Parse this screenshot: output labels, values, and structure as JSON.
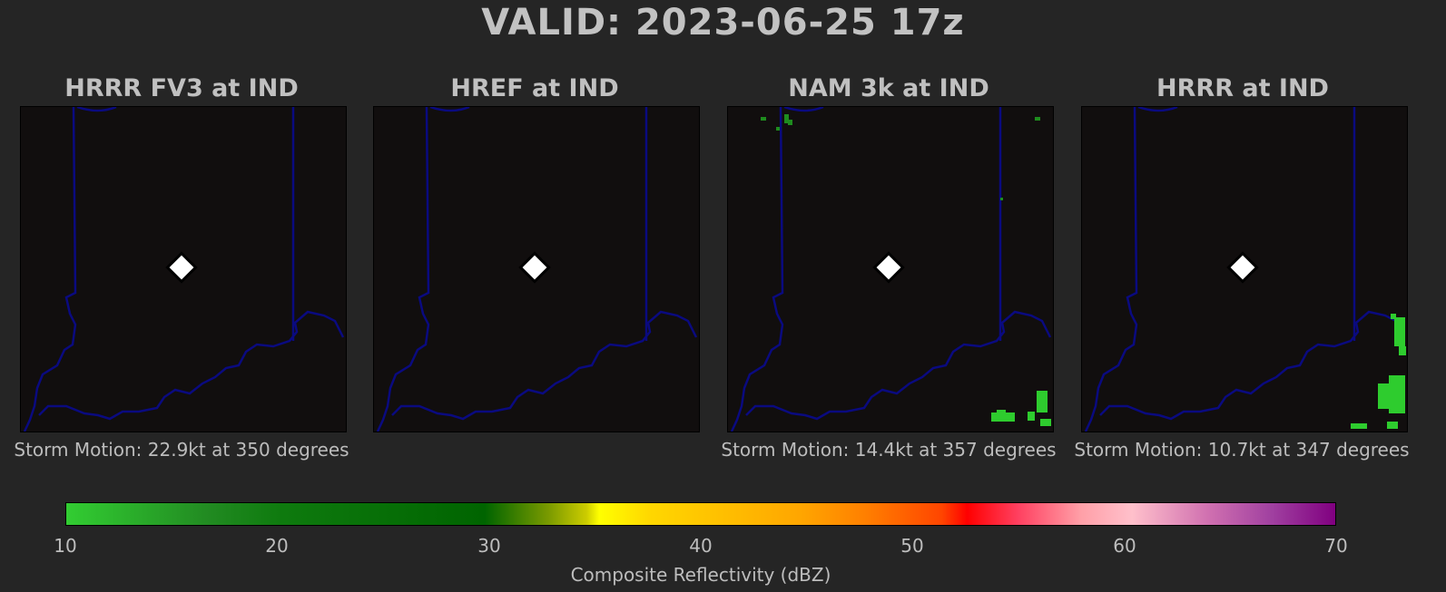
{
  "title": "VALID: 2023-06-25 17z",
  "panels": [
    {
      "title": "HRRR FV3 at IND",
      "motion": "Storm Motion: 22.9kt at 350 degrees"
    },
    {
      "title": "HREF at IND",
      "motion": ""
    },
    {
      "title": "NAM 3k at IND",
      "motion": "Storm Motion: 14.4kt at 357 degrees"
    },
    {
      "title": "HRRR at IND",
      "motion": "Storm Motion: 10.7kt at 347 degrees"
    }
  ],
  "colorbar": {
    "label": "Composite Reflectivity (dBZ)",
    "ticks": [
      "10",
      "20",
      "30",
      "40",
      "50",
      "60",
      "70"
    ],
    "range": [
      10,
      70
    ]
  },
  "colors": {
    "background": "#252525",
    "map_background": "#110e0e",
    "boundary": "#0a0a80",
    "echo_green": "#2ecc2e",
    "marker": "#ffffff"
  },
  "icons": {
    "station_marker": "white-diamond",
    "state_boundary": "navy-line"
  }
}
